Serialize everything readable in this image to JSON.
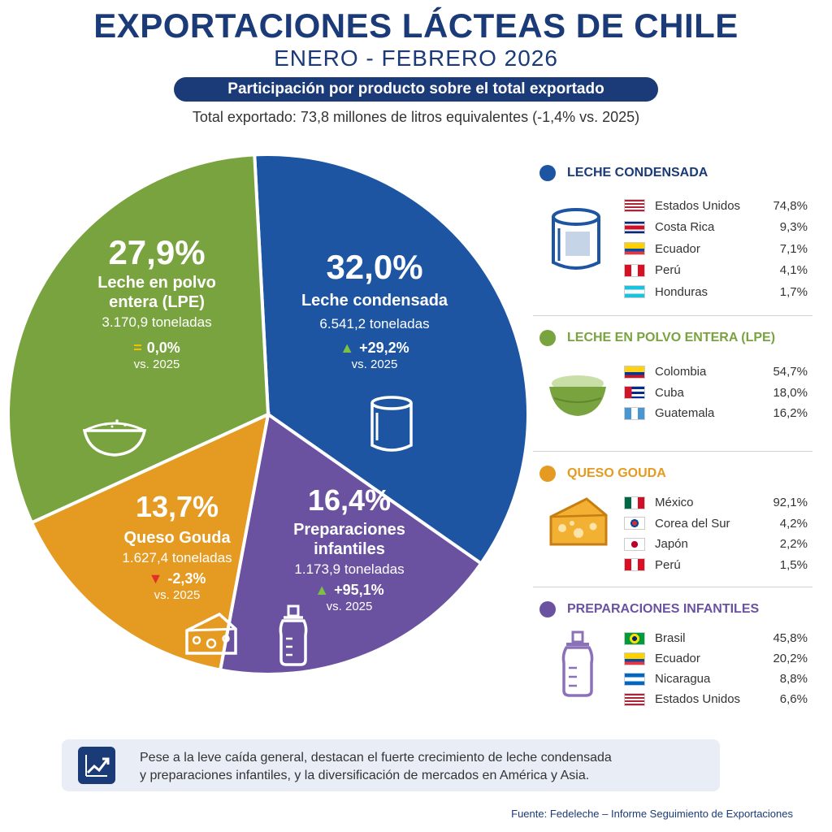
{
  "header": {
    "title": "EXPORTACIONES LÁCTEAS DE CHILE",
    "subtitle": "ENERO - FEBRERO 2026",
    "banner": "Participación por producto sobre el total exportado",
    "total": "Total exportado: 73,8 millones de litros equivalentes (-1,4% vs. 2025)"
  },
  "chart_data": {
    "type": "pie",
    "title": "Participación por producto sobre el total exportado",
    "slices": [
      {
        "label": "Leche condensada",
        "value": 32.0,
        "pct_text": "32,0%",
        "tons": "6.541,2 toneladas",
        "change": 29.2,
        "change_text": "+29,2%",
        "direction": "up",
        "color": "#1d55a3"
      },
      {
        "label": "Preparaciones infantiles",
        "value": 16.4,
        "pct_text": "16,4%",
        "tons": "1.173,9 toneladas",
        "change": 95.1,
        "change_text": "+95,1%",
        "direction": "up",
        "color": "#6b52a1"
      },
      {
        "label": "Queso Gouda",
        "value": 13.7,
        "pct_text": "13,7%",
        "tons": "1.627,4 toneladas",
        "change": -2.3,
        "change_text": "-2,3%",
        "direction": "down",
        "color": "#e59a21"
      },
      {
        "label": "Leche en polvo entera (LPE)",
        "value": 27.9,
        "pct_text": "27,9%",
        "tons": "3.170,9 toneladas",
        "change": 0.0,
        "change_text": "0,0%",
        "direction": "equal",
        "color": "#79a33f"
      }
    ],
    "vs_label": "vs. 2025"
  },
  "labels": {
    "lpe_name": "Leche en polvo entera (LPE)",
    "lc_name": "Leche condensada",
    "qg_name": "Queso Gouda",
    "pi_name": "Preparaciones infantiles"
  },
  "destinations": [
    {
      "title": "LECHE CONDENSADA",
      "color": "#1d55a3",
      "icon": "can-icon",
      "countries": [
        {
          "name": "Estados Unidos",
          "value": "74,8%",
          "flag": "usa"
        },
        {
          "name": "Costa Rica",
          "value": "9,3%",
          "flag": "costa-rica"
        },
        {
          "name": "Ecuador",
          "value": "7,1%",
          "flag": "ecuador"
        },
        {
          "name": "Perú",
          "value": "4,1%",
          "flag": "peru"
        },
        {
          "name": "Honduras",
          "value": "1,7%",
          "flag": "honduras"
        }
      ]
    },
    {
      "title": "LECHE EN POLVO ENTERA (LPE)",
      "color": "#79a33f",
      "icon": "powder-bowl-icon",
      "countries": [
        {
          "name": "Colombia",
          "value": "54,7%",
          "flag": "colombia"
        },
        {
          "name": "Cuba",
          "value": "18,0%",
          "flag": "cuba"
        },
        {
          "name": "Guatemala",
          "value": "16,2%",
          "flag": "guatemala"
        }
      ]
    },
    {
      "title": "QUESO GOUDA",
      "color": "#e59a21",
      "icon": "cheese-icon",
      "countries": [
        {
          "name": "México",
          "value": "92,1%",
          "flag": "mexico"
        },
        {
          "name": "Corea del Sur",
          "value": "4,2%",
          "flag": "south-korea"
        },
        {
          "name": "Japón",
          "value": "2,2%",
          "flag": "japan"
        },
        {
          "name": "Perú",
          "value": "1,5%",
          "flag": "peru"
        }
      ]
    },
    {
      "title": "PREPARACIONES INFANTILES",
      "color": "#6b52a1",
      "icon": "baby-bottle-icon",
      "countries": [
        {
          "name": "Brasil",
          "value": "45,8%",
          "flag": "brazil"
        },
        {
          "name": "Ecuador",
          "value": "20,2%",
          "flag": "ecuador"
        },
        {
          "name": "Nicaragua",
          "value": "8,8%",
          "flag": "nicaragua"
        },
        {
          "name": "Estados Unidos",
          "value": "6,6%",
          "flag": "usa"
        }
      ]
    }
  ],
  "footer": {
    "note_line1": "Pese a la leve caída general, destacan el fuerte crecimiento de leche condensada",
    "note_line2": "y preparaciones infantiles, y la diversificación de mercados en América y Asia.",
    "source": "Fuente: Fedeleche – Informe Seguimiento de Exportaciones"
  }
}
